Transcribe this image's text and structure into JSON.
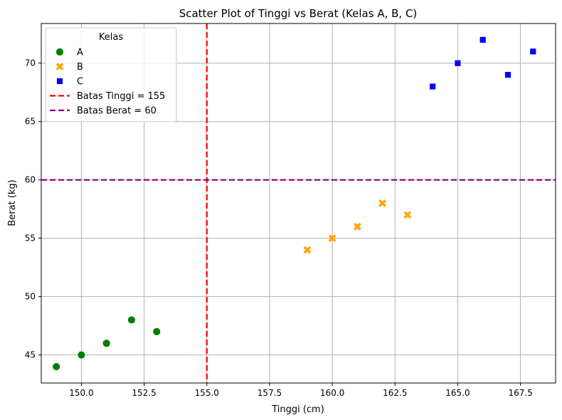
{
  "chart_data": {
    "type": "scatter",
    "title": "Scatter Plot of Tinggi vs Berat (Kelas A, B, C)",
    "xlabel": "Tinggi (cm)",
    "ylabel": "Berat (kg)",
    "xlim": [
      148.4,
      168.9
    ],
    "ylim": [
      42.6,
      73.4
    ],
    "xticks": [
      150.0,
      152.5,
      155.0,
      157.5,
      160.0,
      162.5,
      165.0,
      167.5
    ],
    "xtick_labels": [
      "150.0",
      "152.5",
      "155.0",
      "157.5",
      "160.0",
      "162.5",
      "165.0",
      "167.5"
    ],
    "yticks": [
      45,
      50,
      55,
      60,
      65,
      70
    ],
    "ytick_labels": [
      "45",
      "50",
      "55",
      "60",
      "65",
      "70"
    ],
    "grid": true,
    "legend": {
      "title": "Kelas",
      "placement": "upper-left"
    },
    "series": [
      {
        "name": "A",
        "marker": "circle",
        "color": "#008000",
        "x": [
          149,
          150,
          151,
          152,
          153
        ],
        "y": [
          44,
          45,
          46,
          48,
          47
        ]
      },
      {
        "name": "B",
        "marker": "x",
        "color": "#ffa500",
        "x": [
          159,
          160,
          161,
          162,
          163
        ],
        "y": [
          54,
          55,
          56,
          58,
          57
        ]
      },
      {
        "name": "C",
        "marker": "square",
        "color": "#0000ff",
        "x": [
          164,
          165,
          166,
          167,
          168
        ],
        "y": [
          68,
          70,
          72,
          69,
          71
        ]
      }
    ],
    "reference_lines": [
      {
        "label": "Batas Tinggi = 155",
        "orientation": "vertical",
        "value": 155,
        "color": "#ff0000",
        "style": "dashed"
      },
      {
        "label": "Batas Berat = 60",
        "orientation": "horizontal",
        "value": 60,
        "color": "#800080",
        "style": "dashed"
      }
    ]
  }
}
